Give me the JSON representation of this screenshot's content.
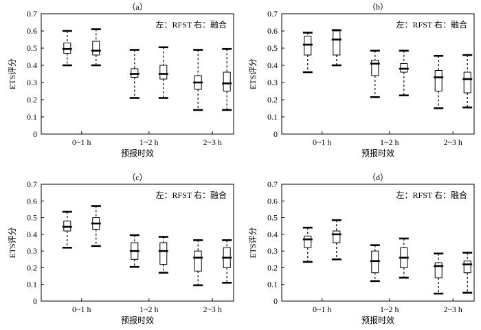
{
  "chart_data": [
    {
      "type": "boxplot",
      "panel_label": "（a）",
      "annotation": "左：RFST 右：融合",
      "xlabel": "预报时效",
      "ylabel": "ETS评分",
      "ylim": [
        0,
        0.7
      ],
      "yticks": [
        "0",
        "0.1",
        "0.2",
        "0.3",
        "0.4",
        "0.5",
        "0.6",
        "0.7"
      ],
      "categories": [
        "0~1 h",
        "1~2 h",
        "2~3 h"
      ],
      "boxes": [
        {
          "category": "0~1 h",
          "position": "left",
          "min": 0.4,
          "q1": 0.47,
          "median": 0.495,
          "q3": 0.53,
          "max": 0.6
        },
        {
          "category": "0~1 h",
          "position": "right",
          "min": 0.4,
          "q1": 0.46,
          "median": 0.485,
          "q3": 0.54,
          "max": 0.61
        },
        {
          "category": "1~2 h",
          "position": "left",
          "min": 0.21,
          "q1": 0.33,
          "median": 0.35,
          "q3": 0.38,
          "max": 0.49
        },
        {
          "category": "1~2 h",
          "position": "right",
          "min": 0.21,
          "q1": 0.32,
          "median": 0.35,
          "q3": 0.4,
          "max": 0.505
        },
        {
          "category": "2~3 h",
          "position": "left",
          "min": 0.14,
          "q1": 0.26,
          "median": 0.3,
          "q3": 0.34,
          "max": 0.49
        },
        {
          "category": "2~3 h",
          "position": "right",
          "min": 0.14,
          "q1": 0.25,
          "median": 0.295,
          "q3": 0.36,
          "max": 0.495
        }
      ]
    },
    {
      "type": "boxplot",
      "panel_label": "（b）",
      "annotation": "左：RFST 右：融合",
      "xlabel": "预报时效",
      "ylabel": "ETS评分",
      "ylim": [
        0,
        0.7
      ],
      "yticks": [
        "0",
        "0.1",
        "0.2",
        "0.3",
        "0.4",
        "0.5",
        "0.6",
        "0.7"
      ],
      "categories": [
        "0~1 h",
        "1~2 h",
        "2~3 h"
      ],
      "boxes": [
        {
          "category": "0~1 h",
          "position": "left",
          "min": 0.36,
          "q1": 0.46,
          "median": 0.52,
          "q3": 0.57,
          "max": 0.59
        },
        {
          "category": "0~1 h",
          "position": "right",
          "min": 0.4,
          "q1": 0.46,
          "median": 0.55,
          "q3": 0.6,
          "max": 0.605
        },
        {
          "category": "1~2 h",
          "position": "left",
          "min": 0.215,
          "q1": 0.34,
          "median": 0.41,
          "q3": 0.43,
          "max": 0.485
        },
        {
          "category": "1~2 h",
          "position": "right",
          "min": 0.225,
          "q1": 0.36,
          "median": 0.38,
          "q3": 0.41,
          "max": 0.485
        },
        {
          "category": "2~3 h",
          "position": "left",
          "min": 0.15,
          "q1": 0.25,
          "median": 0.33,
          "q3": 0.37,
          "max": 0.455
        },
        {
          "category": "2~3 h",
          "position": "right",
          "min": 0.155,
          "q1": 0.24,
          "median": 0.32,
          "q3": 0.36,
          "max": 0.46
        }
      ]
    },
    {
      "type": "boxplot",
      "panel_label": "（c）",
      "annotation": "左：RFST 右：融合",
      "xlabel": "预报时效",
      "ylabel": "ETS评分",
      "ylim": [
        0,
        0.7
      ],
      "yticks": [
        "0",
        "0.1",
        "0.2",
        "0.3",
        "0.4",
        "0.5",
        "0.6",
        "0.7"
      ],
      "categories": [
        "0~1 h",
        "1~2 h",
        "2~3 h"
      ],
      "boxes": [
        {
          "category": "0~1 h",
          "position": "left",
          "min": 0.32,
          "q1": 0.42,
          "median": 0.445,
          "q3": 0.48,
          "max": 0.535
        },
        {
          "category": "0~1 h",
          "position": "right",
          "min": 0.33,
          "q1": 0.43,
          "median": 0.465,
          "q3": 0.5,
          "max": 0.57
        },
        {
          "category": "1~2 h",
          "position": "left",
          "min": 0.205,
          "q1": 0.25,
          "median": 0.3,
          "q3": 0.35,
          "max": 0.395
        },
        {
          "category": "1~2 h",
          "position": "right",
          "min": 0.17,
          "q1": 0.22,
          "median": 0.3,
          "q3": 0.35,
          "max": 0.385
        },
        {
          "category": "2~3 h",
          "position": "left",
          "min": 0.095,
          "q1": 0.18,
          "median": 0.26,
          "q3": 0.3,
          "max": 0.365
        },
        {
          "category": "2~3 h",
          "position": "right",
          "min": 0.11,
          "q1": 0.2,
          "median": 0.26,
          "q3": 0.32,
          "max": 0.365
        }
      ]
    },
    {
      "type": "boxplot",
      "panel_label": "（d）",
      "annotation": "左：RFST 右：融合",
      "xlabel": "预报时效",
      "ylabel": "ETS评分",
      "ylim": [
        0,
        0.7
      ],
      "yticks": [
        "0",
        "0.1",
        "0.2",
        "0.3",
        "0.4",
        "0.5",
        "0.6",
        "0.7"
      ],
      "categories": [
        "0~1 h",
        "1~2 h",
        "2~3 h"
      ],
      "boxes": [
        {
          "category": "0~1 h",
          "position": "left",
          "min": 0.235,
          "q1": 0.32,
          "median": 0.37,
          "q3": 0.39,
          "max": 0.44
        },
        {
          "category": "0~1 h",
          "position": "right",
          "min": 0.25,
          "q1": 0.35,
          "median": 0.4,
          "q3": 0.42,
          "max": 0.485
        },
        {
          "category": "1~2 h",
          "position": "left",
          "min": 0.12,
          "q1": 0.17,
          "median": 0.24,
          "q3": 0.3,
          "max": 0.335
        },
        {
          "category": "1~2 h",
          "position": "right",
          "min": 0.14,
          "q1": 0.2,
          "median": 0.26,
          "q3": 0.32,
          "max": 0.375
        },
        {
          "category": "2~3 h",
          "position": "left",
          "min": 0.045,
          "q1": 0.14,
          "median": 0.21,
          "q3": 0.23,
          "max": 0.285
        },
        {
          "category": "2~3 h",
          "position": "right",
          "min": 0.05,
          "q1": 0.17,
          "median": 0.22,
          "q3": 0.24,
          "max": 0.29
        }
      ]
    }
  ]
}
